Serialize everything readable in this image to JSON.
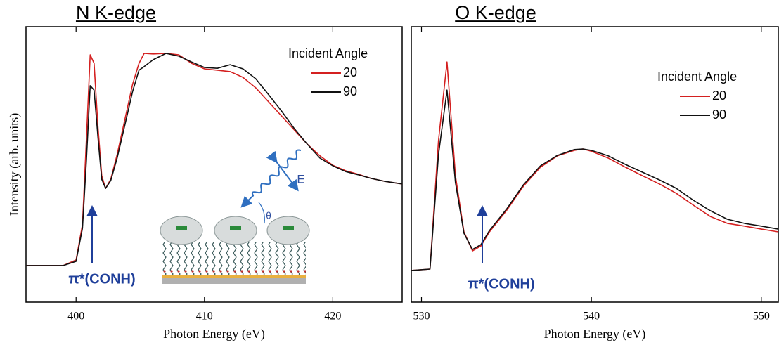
{
  "chart_data": [
    {
      "type": "line",
      "title": "N K-edge",
      "xlabel": "Photon Energy (eV)",
      "ylabel": "Intensity (arb. units)",
      "legend_title": "Incident Angle",
      "xlim": [
        396.1,
        425.4
      ],
      "xticks": [
        400,
        410,
        420
      ],
      "ylim": [
        0,
        1
      ],
      "x": [
        396.1,
        399,
        400,
        400.5,
        400.8,
        401.1,
        401.4,
        401.7,
        402,
        402.3,
        402.7,
        403.2,
        403.8,
        404.4,
        404.9,
        405.3,
        406,
        407,
        408,
        409,
        410,
        411,
        412,
        413,
        414,
        415,
        416,
        417,
        418,
        419,
        420,
        421,
        422,
        423,
        424,
        425.4
      ],
      "series": [
        {
          "name": "20",
          "color": "#d42020",
          "values": [
            0.133,
            0.133,
            0.153,
            0.281,
            0.587,
            0.898,
            0.867,
            0.638,
            0.459,
            0.413,
            0.446,
            0.536,
            0.663,
            0.791,
            0.867,
            0.903,
            0.901,
            0.903,
            0.898,
            0.867,
            0.847,
            0.842,
            0.837,
            0.816,
            0.778,
            0.727,
            0.676,
            0.625,
            0.574,
            0.531,
            0.497,
            0.477,
            0.464,
            0.449,
            0.439,
            0.429
          ]
        },
        {
          "name": "90",
          "color": "#111111",
          "values": [
            0.133,
            0.133,
            0.148,
            0.268,
            0.51,
            0.786,
            0.77,
            0.599,
            0.446,
            0.413,
            0.441,
            0.523,
            0.643,
            0.765,
            0.842,
            0.855,
            0.88,
            0.903,
            0.893,
            0.872,
            0.852,
            0.849,
            0.862,
            0.847,
            0.811,
            0.753,
            0.694,
            0.63,
            0.574,
            0.523,
            0.495,
            0.474,
            0.462,
            0.449,
            0.439,
            0.429
          ]
        }
      ],
      "annotations": [
        "π*(CONH)",
        "E",
        "θ"
      ]
    },
    {
      "type": "line",
      "title": "O K-edge",
      "xlabel": "Photon Energy (eV)",
      "legend_title": "Incident Angle",
      "xlim": [
        529.4,
        551.0
      ],
      "xticks": [
        530,
        540,
        550
      ],
      "ylim": [
        0,
        1
      ],
      "x": [
        529.4,
        530.5,
        531,
        531.5,
        532,
        532.5,
        533,
        533.5,
        534,
        535,
        536,
        537,
        538,
        539,
        539.5,
        540,
        541,
        542,
        543,
        544,
        545,
        546,
        547,
        548,
        549,
        550,
        551
      ],
      "series": [
        {
          "name": "20",
          "color": "#d42020",
          "values": [
            0.115,
            0.12,
            0.587,
            0.872,
            0.459,
            0.255,
            0.186,
            0.204,
            0.255,
            0.332,
            0.421,
            0.49,
            0.531,
            0.551,
            0.556,
            0.548,
            0.523,
            0.49,
            0.459,
            0.429,
            0.395,
            0.352,
            0.311,
            0.286,
            0.276,
            0.265,
            0.255
          ]
        },
        {
          "name": "90",
          "color": "#111111",
          "values": [
            0.115,
            0.12,
            0.536,
            0.77,
            0.434,
            0.25,
            0.191,
            0.209,
            0.26,
            0.337,
            0.426,
            0.495,
            0.533,
            0.554,
            0.556,
            0.551,
            0.531,
            0.5,
            0.472,
            0.444,
            0.413,
            0.37,
            0.332,
            0.301,
            0.286,
            0.276,
            0.265
          ]
        }
      ],
      "annotations": [
        "π*(CONH)"
      ]
    }
  ]
}
